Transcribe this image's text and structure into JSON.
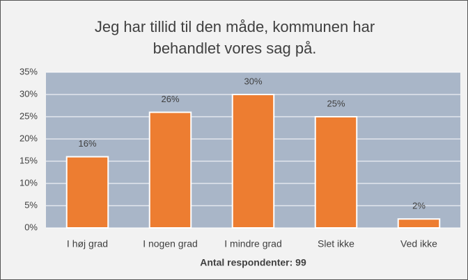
{
  "chart_data": {
    "type": "bar",
    "title": "Jeg har tillid til den måde, kommunen har behandlet vores sag på.",
    "x_label": "Antal respondenter: 99",
    "categories": [
      "I høj grad",
      "I nogen grad",
      "I mindre grad",
      "Slet ikke",
      "Ved ikke"
    ],
    "values": [
      16,
      26,
      30,
      25,
      2
    ],
    "value_labels": [
      "16%",
      "26%",
      "30%",
      "25%",
      "2%"
    ],
    "color": "#ed7d31",
    "ylim": [
      0,
      35
    ],
    "yticks": [
      {
        "value": 0,
        "label": "0%"
      },
      {
        "value": 5,
        "label": "5%"
      },
      {
        "value": 10,
        "label": "10%"
      },
      {
        "value": 15,
        "label": "15%"
      },
      {
        "value": 20,
        "label": "20%"
      },
      {
        "value": 25,
        "label": "25%"
      },
      {
        "value": 30,
        "label": "30%"
      },
      {
        "value": 35,
        "label": "35%"
      }
    ],
    "grid": true
  }
}
